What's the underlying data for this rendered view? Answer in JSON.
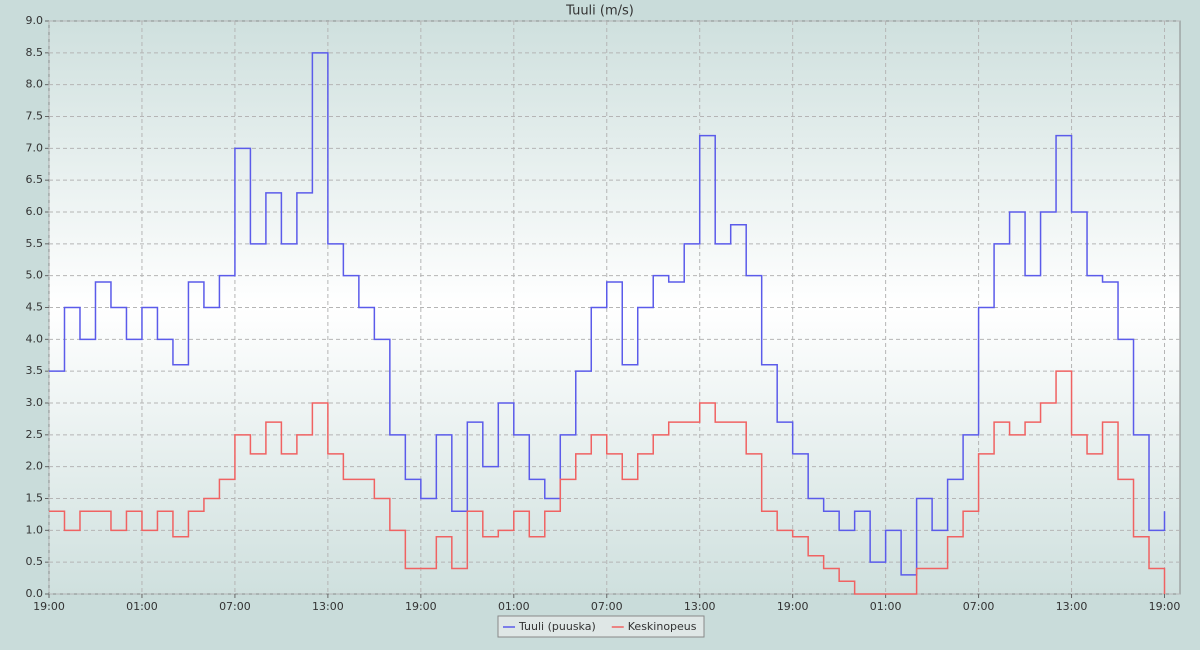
{
  "chart_data": {
    "type": "line",
    "title": "Tuuli (m/s)",
    "x": [
      0,
      1,
      2,
      3,
      4,
      5,
      6,
      7,
      8,
      9,
      10,
      11,
      12,
      13,
      14,
      15,
      16,
      17,
      18,
      19,
      20,
      21,
      22,
      23,
      24,
      25,
      26,
      27,
      28,
      29,
      30,
      31,
      32,
      33,
      34,
      35,
      36,
      37,
      38,
      39,
      40,
      41,
      42,
      43,
      44,
      45,
      46,
      47,
      48,
      49,
      50,
      51,
      52,
      53,
      54,
      55,
      56,
      57,
      58,
      59,
      60,
      61,
      62,
      63,
      64,
      65,
      66,
      67,
      68,
      69,
      70,
      71,
      72
    ],
    "series": [
      {
        "name": "Tuuli (puuska)",
        "color": "#5b5bea",
        "values": [
          3.5,
          4.5,
          4.0,
          4.9,
          4.5,
          4.0,
          4.5,
          4.0,
          3.6,
          4.9,
          4.5,
          5.0,
          7.0,
          5.5,
          6.3,
          5.5,
          6.3,
          8.5,
          5.5,
          5.0,
          4.5,
          4.0,
          2.5,
          1.8,
          1.5,
          2.5,
          1.3,
          2.7,
          2.0,
          3.0,
          2.5,
          1.8,
          1.5,
          2.5,
          3.5,
          4.5,
          4.9,
          3.6,
          4.5,
          5.0,
          4.9,
          5.5,
          7.2,
          5.5,
          5.8,
          5.0,
          3.6,
          2.7,
          2.2,
          1.5,
          1.3,
          1.0,
          1.3,
          0.5,
          1.0,
          0.3,
          1.5,
          1.0,
          1.8,
          2.5,
          4.5,
          5.5,
          6.0,
          5.0,
          6.0,
          7.2,
          6.0,
          5.0,
          4.9,
          4.0,
          2.5,
          1.0,
          1.3
        ]
      },
      {
        "name": "Keskinopeus",
        "color": "#f06262",
        "values": [
          1.3,
          1.0,
          1.3,
          1.3,
          1.0,
          1.3,
          1.0,
          1.3,
          0.9,
          1.3,
          1.5,
          1.8,
          2.5,
          2.2,
          2.7,
          2.2,
          2.5,
          3.0,
          2.2,
          1.8,
          1.8,
          1.5,
          1.0,
          0.4,
          0.4,
          0.9,
          0.4,
          1.3,
          0.9,
          1.0,
          1.3,
          0.9,
          1.3,
          1.8,
          2.2,
          2.5,
          2.2,
          1.8,
          2.2,
          2.5,
          2.7,
          2.7,
          3.0,
          2.7,
          2.7,
          2.2,
          1.3,
          1.0,
          0.9,
          0.6,
          0.4,
          0.2,
          0.0,
          0.0,
          0.0,
          0.0,
          0.4,
          0.4,
          0.9,
          1.3,
          2.2,
          2.7,
          2.5,
          2.7,
          3.0,
          3.5,
          2.5,
          2.2,
          2.7,
          1.8,
          0.9,
          0.4,
          0.0
        ]
      }
    ],
    "xlim": [
      0,
      73
    ],
    "xticks": [
      {
        "value": 0,
        "label": "19:00"
      },
      {
        "value": 6,
        "label": "01:00"
      },
      {
        "value": 12,
        "label": "07:00"
      },
      {
        "value": 18,
        "label": "13:00"
      },
      {
        "value": 24,
        "label": "19:00"
      },
      {
        "value": 30,
        "label": "01:00"
      },
      {
        "value": 36,
        "label": "07:00"
      },
      {
        "value": 42,
        "label": "13:00"
      },
      {
        "value": 48,
        "label": "19:00"
      },
      {
        "value": 54,
        "label": "01:00"
      },
      {
        "value": 60,
        "label": "07:00"
      },
      {
        "value": 66,
        "label": "13:00"
      },
      {
        "value": 72,
        "label": "19:00"
      }
    ],
    "ylim": [
      0,
      9
    ],
    "yticks": [
      {
        "value": 0,
        "label": "0.0"
      },
      0.5,
      {
        "value": 1,
        "label": "1.0"
      },
      1.5,
      {
        "value": 2,
        "label": "2.0"
      },
      2.5,
      {
        "value": 3,
        "label": "3.0"
      },
      3.5,
      {
        "value": 4,
        "label": "4.0"
      },
      4.5,
      {
        "value": 5,
        "label": "5.0"
      },
      5.5,
      {
        "value": 6,
        "label": "6.0"
      },
      6.5,
      {
        "value": 7,
        "label": "7.0"
      },
      7.5,
      {
        "value": 8,
        "label": "8.0"
      },
      8.5,
      {
        "value": 9,
        "label": "9.0"
      }
    ],
    "grid": true,
    "step": true,
    "legend": "bottom"
  }
}
